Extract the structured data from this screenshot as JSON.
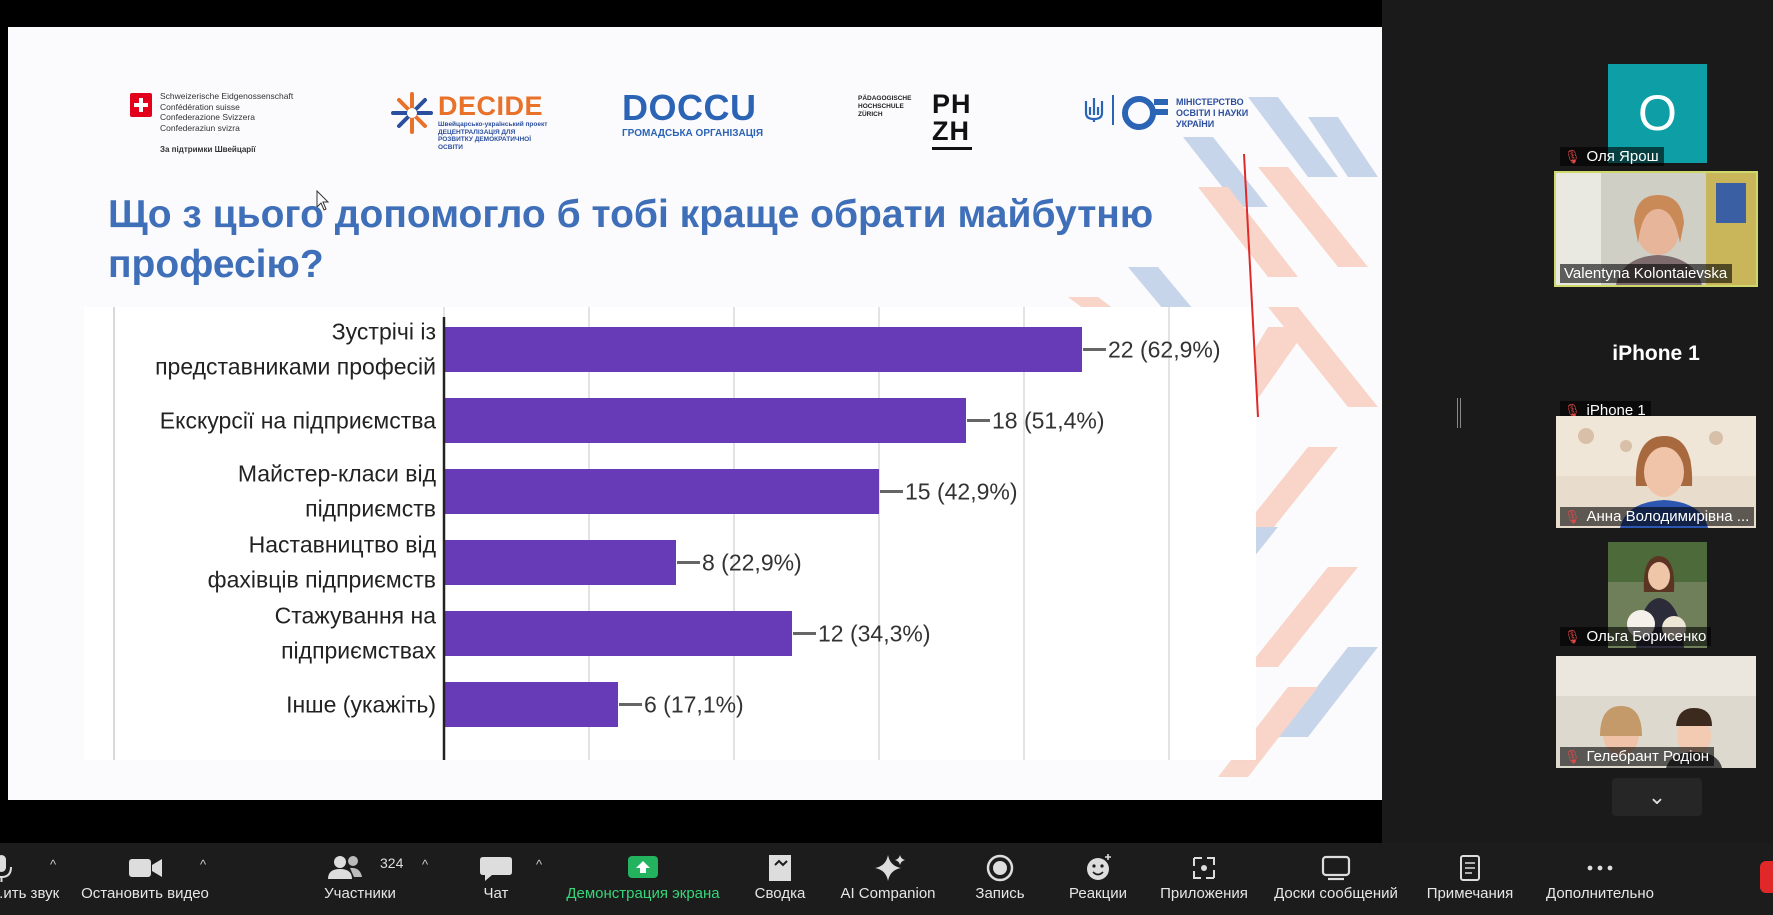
{
  "colors": {
    "title": "#3f6fb8",
    "bar": "#673ab7",
    "accent_green": "#37d67a",
    "mic_muted": "#e04848"
  },
  "slide": {
    "logos": {
      "swiss_lines": [
        "Schweizerische Eidgenossenschaft",
        "Confédération suisse",
        "Confederazione Svizzera",
        "Confederaziun svizra"
      ],
      "swiss_support": "За підтримки Швейцарії",
      "decide_title": "DECIDE",
      "decide_sub": "Швейцарсько-український проект ДЕЦЕНТРАЛІЗАЦІЯ ДЛЯ РОЗВИТКУ ДЕМОКРАТИЧНОЇ ОСВІТИ",
      "doccu_title": "DOCCU",
      "doccu_sub": "ГРОМАДСЬКА ОРГАНІЗАЦІЯ",
      "phzh_small": "PÄDAGOGISCHE HOCHSCHULE ZÜRICH",
      "phzh_line1": "PH",
      "phzh_line2": "ZH",
      "mon_text": "МІНІСТЕРСТВО ОСВІТИ І НАУКИ УКРАЇНИ"
    },
    "title": "Що з цього допомогло б тобі краще обрати майбутню професію?"
  },
  "chart_data": {
    "type": "bar",
    "orientation": "horizontal",
    "title": "Що з цього допомогло б тобі краще обрати майбутню професію?",
    "categories": [
      [
        "Зустрічі із",
        "представниками професій"
      ],
      [
        "Екскурсії на підприємства"
      ],
      [
        "Майстер-класи від",
        "підприємств"
      ],
      [
        "Наставництво від",
        "фахівців підприємств"
      ],
      [
        "Стажування на",
        "підприємствах"
      ],
      [
        "Інше (укажіть)"
      ]
    ],
    "values": [
      22,
      18,
      15,
      8,
      12,
      6
    ],
    "labels": [
      "22 (62,9%)",
      "18 (51,4%)",
      "15 (42,9%)",
      "8 (22,9%)",
      "12 (34,3%)",
      "6 (17,1%)"
    ],
    "xlim": [
      0,
      30
    ],
    "grid": true,
    "gridlines": [
      0,
      5,
      10,
      15,
      20,
      25,
      30
    ]
  },
  "participants": [
    {
      "name": "Оля Ярош",
      "avatar_letter": "О",
      "muted": true,
      "type": "avatar"
    },
    {
      "name": "Valentyna Kolontaievska",
      "muted": false,
      "type": "video",
      "active": true
    },
    {
      "name": "iPhone 1",
      "label": "iPhone 1",
      "muted": true,
      "type": "label"
    },
    {
      "name": "Анна Володимирівна ...",
      "muted": true,
      "type": "video"
    },
    {
      "name": "Ольга Борисенко",
      "muted": true,
      "type": "video"
    },
    {
      "name": "Гелебрант Родіон",
      "muted": true,
      "type": "video"
    }
  ],
  "toolbar": {
    "mute_label": "...ить звук",
    "video_label": "Остановить видео",
    "participants_label": "Участники",
    "participants_count": "324",
    "chat_label": "Чат",
    "share_label": "Демонстрация экрана",
    "summary_label": "Сводка",
    "ai_label": "AI Companion",
    "record_label": "Запись",
    "reactions_label": "Реакции",
    "apps_label": "Приложения",
    "boards_label": "Доски сообщений",
    "notes_label": "Примечания",
    "more_label": "Дополнительно"
  },
  "icons": {
    "strip_down": "chevron-down-icon",
    "mic_muted": "mic-muted-icon"
  }
}
